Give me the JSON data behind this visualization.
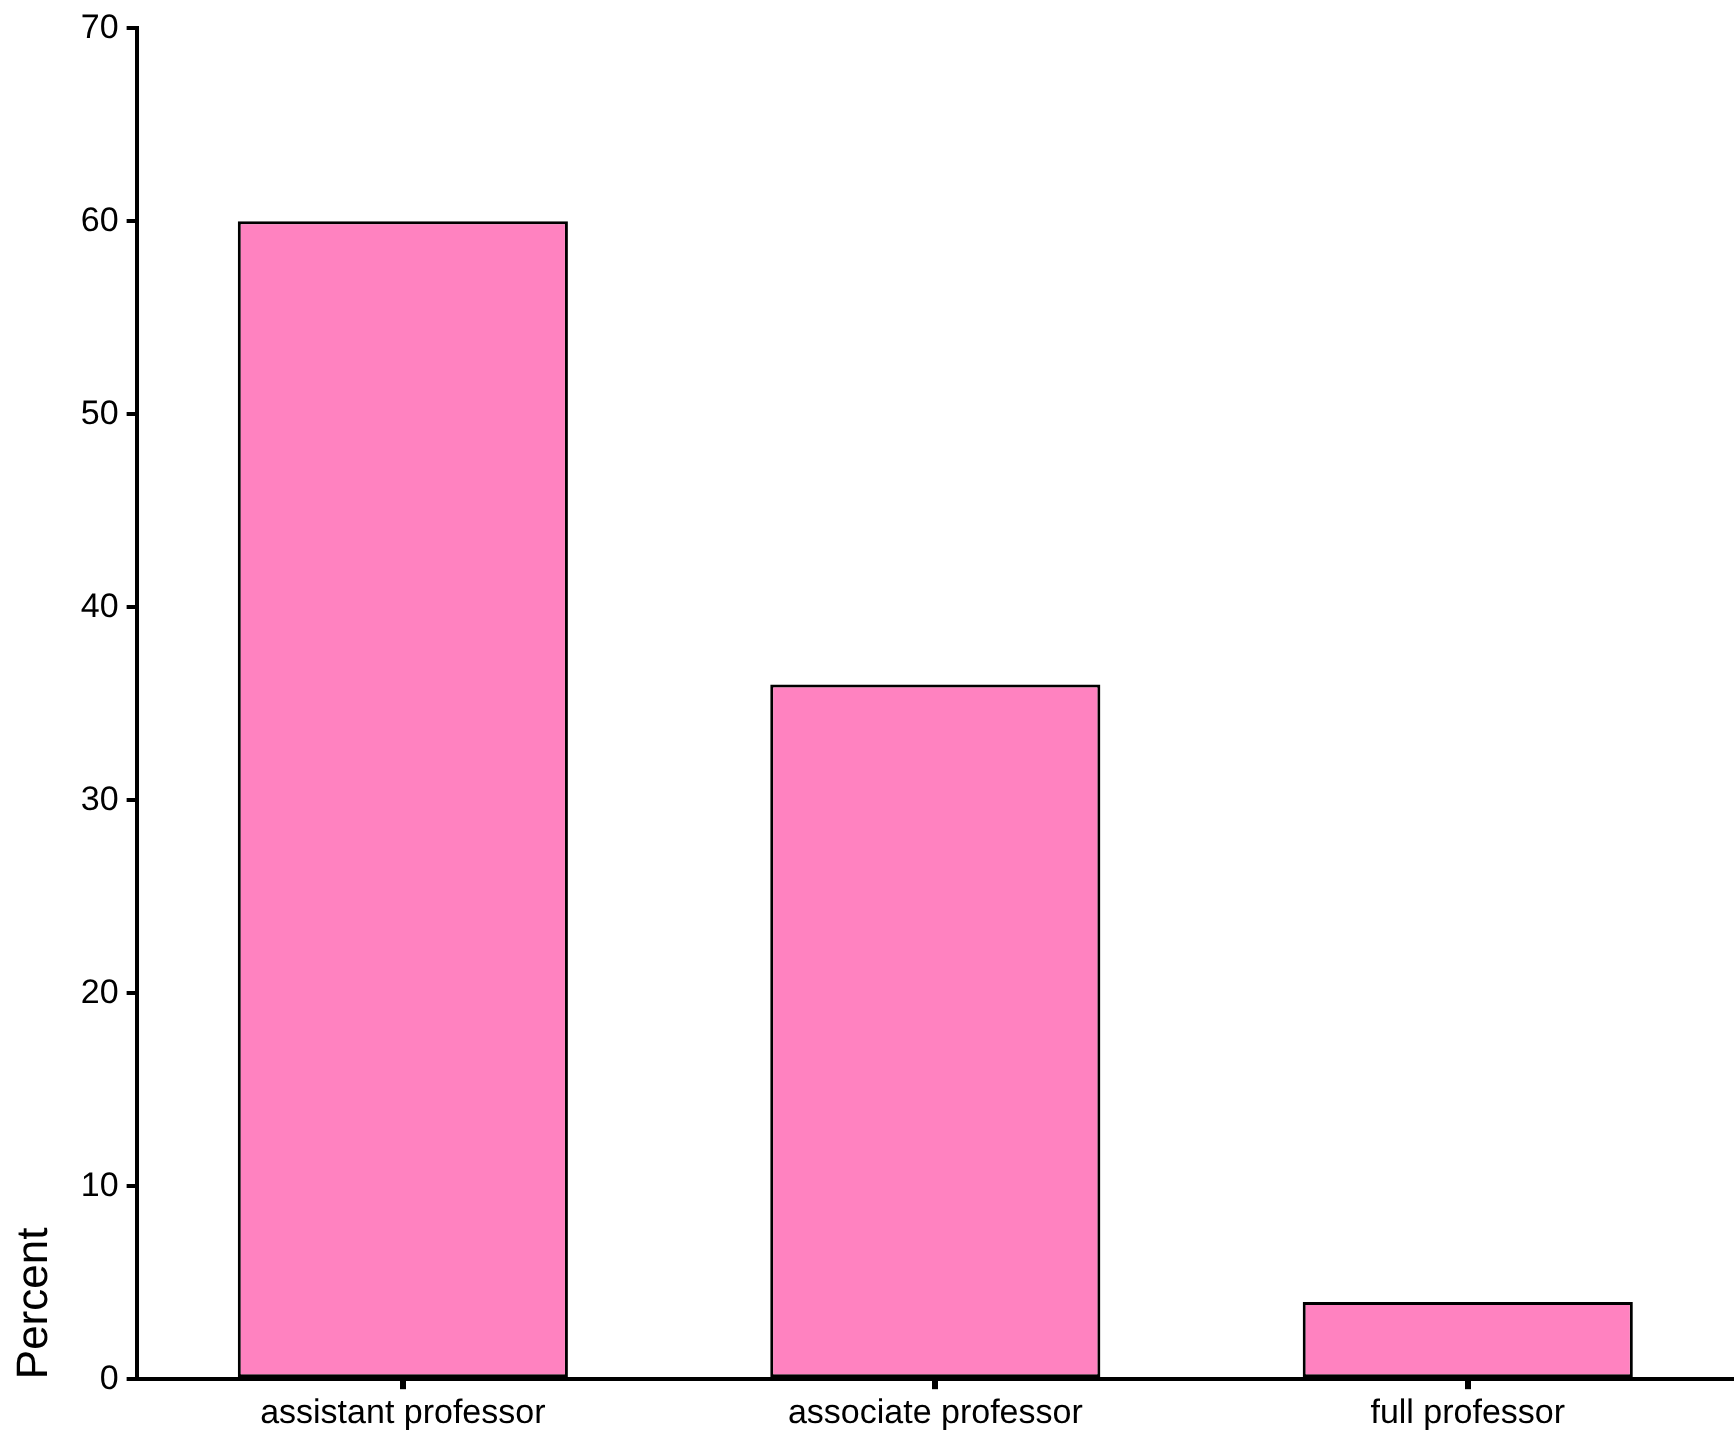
{
  "chart_data": {
    "type": "bar",
    "ylabel": "Percent",
    "categories": [
      "assistant professor",
      "associate professor",
      "full professor"
    ],
    "values": [
      60,
      36,
      4
    ],
    "color": "#ff82c0",
    "ylim": [
      0,
      70
    ],
    "yticks": [
      0,
      10,
      20,
      30,
      40,
      50,
      60,
      70
    ],
    "grid": false,
    "legend": false
  }
}
